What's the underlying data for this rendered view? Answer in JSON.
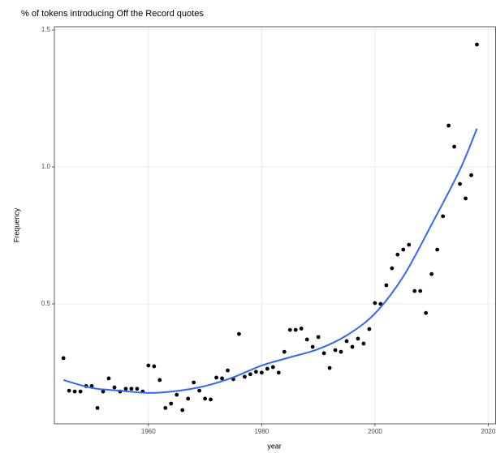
{
  "chart_data": {
    "type": "scatter",
    "title": "% of tokens introducing Off the Record quotes",
    "x_label": "year",
    "y_label": "Frequency",
    "x": [
      1945,
      1946,
      1947,
      1948,
      1949,
      1950,
      1951,
      1952,
      1953,
      1954,
      1955,
      1956,
      1957,
      1958,
      1959,
      1960,
      1961,
      1962,
      1963,
      1964,
      1965,
      1966,
      1967,
      1968,
      1969,
      1970,
      1971,
      1972,
      1973,
      1974,
      1975,
      1976,
      1977,
      1978,
      1979,
      1980,
      1981,
      1982,
      1983,
      1984,
      1985,
      1986,
      1987,
      1988,
      1989,
      1990,
      1991,
      1992,
      1993,
      1994,
      1995,
      1996,
      1997,
      1998,
      1999,
      2000,
      2001,
      2002,
      2003,
      2004,
      2005,
      2006,
      2007,
      2008,
      2009,
      2010,
      2011,
      2012,
      2013,
      2014,
      2015,
      2016,
      2017,
      2018
    ],
    "values": [
      0.302,
      0.183,
      0.18,
      0.18,
      0.2,
      0.2,
      0.12,
      0.18,
      0.228,
      0.195,
      0.18,
      0.19,
      0.19,
      0.19,
      0.18,
      0.275,
      0.272,
      0.222,
      0.12,
      0.136,
      0.168,
      0.112,
      0.154,
      0.213,
      0.183,
      0.154,
      0.151,
      0.231,
      0.228,
      0.257,
      0.225,
      0.39,
      0.234,
      0.243,
      0.252,
      0.249,
      0.263,
      0.269,
      0.249,
      0.325,
      0.405,
      0.405,
      0.41,
      0.37,
      0.343,
      0.379,
      0.32,
      0.266,
      0.331,
      0.325,
      0.364,
      0.343,
      0.373,
      0.355,
      0.408,
      0.503,
      0.5,
      0.568,
      0.63,
      0.68,
      0.698,
      0.716,
      0.547,
      0.547,
      0.467,
      0.609,
      0.698,
      0.82,
      1.151,
      1.074,
      0.938,
      0.885,
      0.97,
      1.447
    ],
    "color": "#000000",
    "smooth": {
      "color": "#3366ff",
      "x": [
        1945,
        1950,
        1955,
        1960,
        1965,
        1970,
        1975,
        1980,
        1985,
        1990,
        1995,
        2000,
        2005,
        2010,
        2015,
        2018
      ],
      "values": [
        0.222,
        0.193,
        0.183,
        0.175,
        0.182,
        0.2,
        0.232,
        0.275,
        0.305,
        0.335,
        0.385,
        0.465,
        0.6,
        0.79,
        0.99,
        1.14
      ]
    },
    "xlim": [
      1943.4,
      2021.3
    ],
    "ylim": [
      0.062,
      1.512
    ],
    "xticks": [
      1960,
      1980,
      2000,
      2020
    ],
    "yticks": [
      0.5,
      {
        "value": 1,
        "label": "1.0"
      },
      1.5
    ],
    "grid": true
  }
}
